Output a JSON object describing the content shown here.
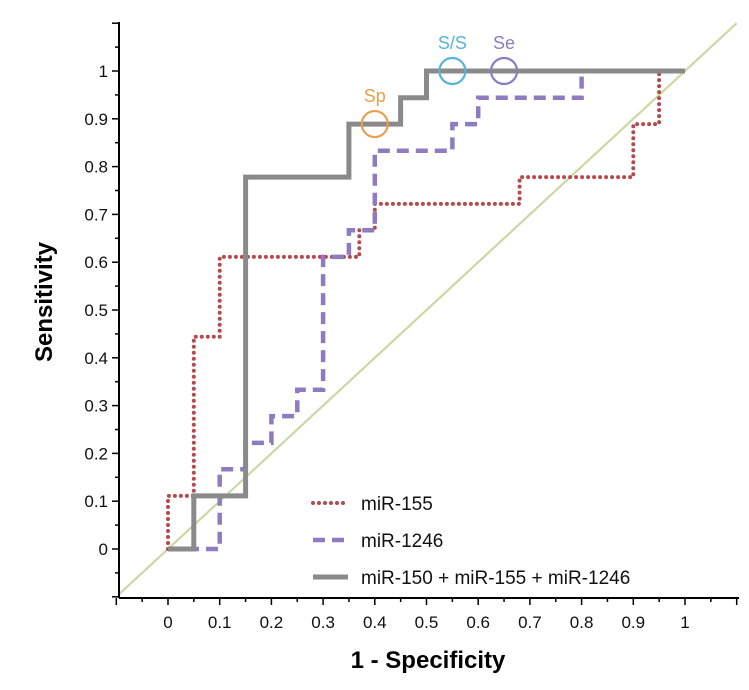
{
  "chart_data": {
    "type": "line",
    "xlabel": "1 - Specificity",
    "ylabel": "Sensitivity",
    "xlim": [
      -0.1,
      1.1
    ],
    "ylim": [
      -0.1,
      1.1
    ],
    "x_ticks": [
      "0",
      "0.1",
      "0.2",
      "0.3",
      "0.4",
      "0.5",
      "0.6",
      "0.7",
      "0.8",
      "0.9",
      "1"
    ],
    "y_ticks": [
      "0",
      "0.1",
      "0.2",
      "0.3",
      "0.4",
      "0.5",
      "0.6",
      "0.7",
      "0.8",
      "0.9",
      "1"
    ],
    "grid": false,
    "legend_position": "bottom-right",
    "reference_line": {
      "from": [
        -0.1,
        -0.1
      ],
      "to": [
        1.1,
        1.1
      ],
      "color": "#c8d9a4"
    },
    "series": [
      {
        "name": "miR-155",
        "style": "dotted",
        "color": "#b5494b",
        "points": [
          [
            0,
            0
          ],
          [
            0,
            0.111
          ],
          [
            0.05,
            0.111
          ],
          [
            0.05,
            0.444
          ],
          [
            0.1,
            0.444
          ],
          [
            0.1,
            0.611
          ],
          [
            0.35,
            0.611
          ],
          [
            0.35,
            0.611
          ],
          [
            0.37,
            0.611
          ],
          [
            0.37,
            0.667
          ],
          [
            0.4,
            0.667
          ],
          [
            0.4,
            0.722
          ],
          [
            0.68,
            0.722
          ],
          [
            0.68,
            0.778
          ],
          [
            0.9,
            0.778
          ],
          [
            0.9,
            0.889
          ],
          [
            0.95,
            0.889
          ],
          [
            0.95,
            1
          ],
          [
            1,
            1
          ]
        ]
      },
      {
        "name": "miR-1246",
        "style": "dashed",
        "color": "#8f7bbf",
        "points": [
          [
            0,
            0
          ],
          [
            0.1,
            0
          ],
          [
            0.1,
            0.167
          ],
          [
            0.15,
            0.167
          ],
          [
            0.15,
            0.222
          ],
          [
            0.2,
            0.222
          ],
          [
            0.2,
            0.278
          ],
          [
            0.25,
            0.278
          ],
          [
            0.25,
            0.333
          ],
          [
            0.3,
            0.333
          ],
          [
            0.3,
            0.611
          ],
          [
            0.35,
            0.611
          ],
          [
            0.35,
            0.667
          ],
          [
            0.4,
            0.667
          ],
          [
            0.4,
            0.833
          ],
          [
            0.55,
            0.833
          ],
          [
            0.55,
            0.889
          ],
          [
            0.6,
            0.889
          ],
          [
            0.6,
            0.944
          ],
          [
            0.8,
            0.944
          ],
          [
            0.8,
            1
          ],
          [
            1,
            1
          ]
        ]
      },
      {
        "name": "miR-150 + miR-155 + miR-1246",
        "style": "solid",
        "color": "#8a8a8a",
        "points": [
          [
            0,
            0
          ],
          [
            0.05,
            0
          ],
          [
            0.05,
            0.111
          ],
          [
            0.15,
            0.111
          ],
          [
            0.15,
            0.778
          ],
          [
            0.35,
            0.778
          ],
          [
            0.35,
            0.889
          ],
          [
            0.45,
            0.889
          ],
          [
            0.45,
            0.944
          ],
          [
            0.5,
            0.944
          ],
          [
            0.5,
            1
          ],
          [
            1,
            1
          ]
        ]
      }
    ],
    "annotations": [
      {
        "label": "Sp",
        "x": 0.4,
        "y": 0.889,
        "color": "#e8a04c"
      },
      {
        "label": "S/S",
        "x": 0.55,
        "y": 1.0,
        "color": "#5ab4d6"
      },
      {
        "label": "Se",
        "x": 0.65,
        "y": 1.0,
        "color": "#8f7bbf"
      }
    ]
  }
}
